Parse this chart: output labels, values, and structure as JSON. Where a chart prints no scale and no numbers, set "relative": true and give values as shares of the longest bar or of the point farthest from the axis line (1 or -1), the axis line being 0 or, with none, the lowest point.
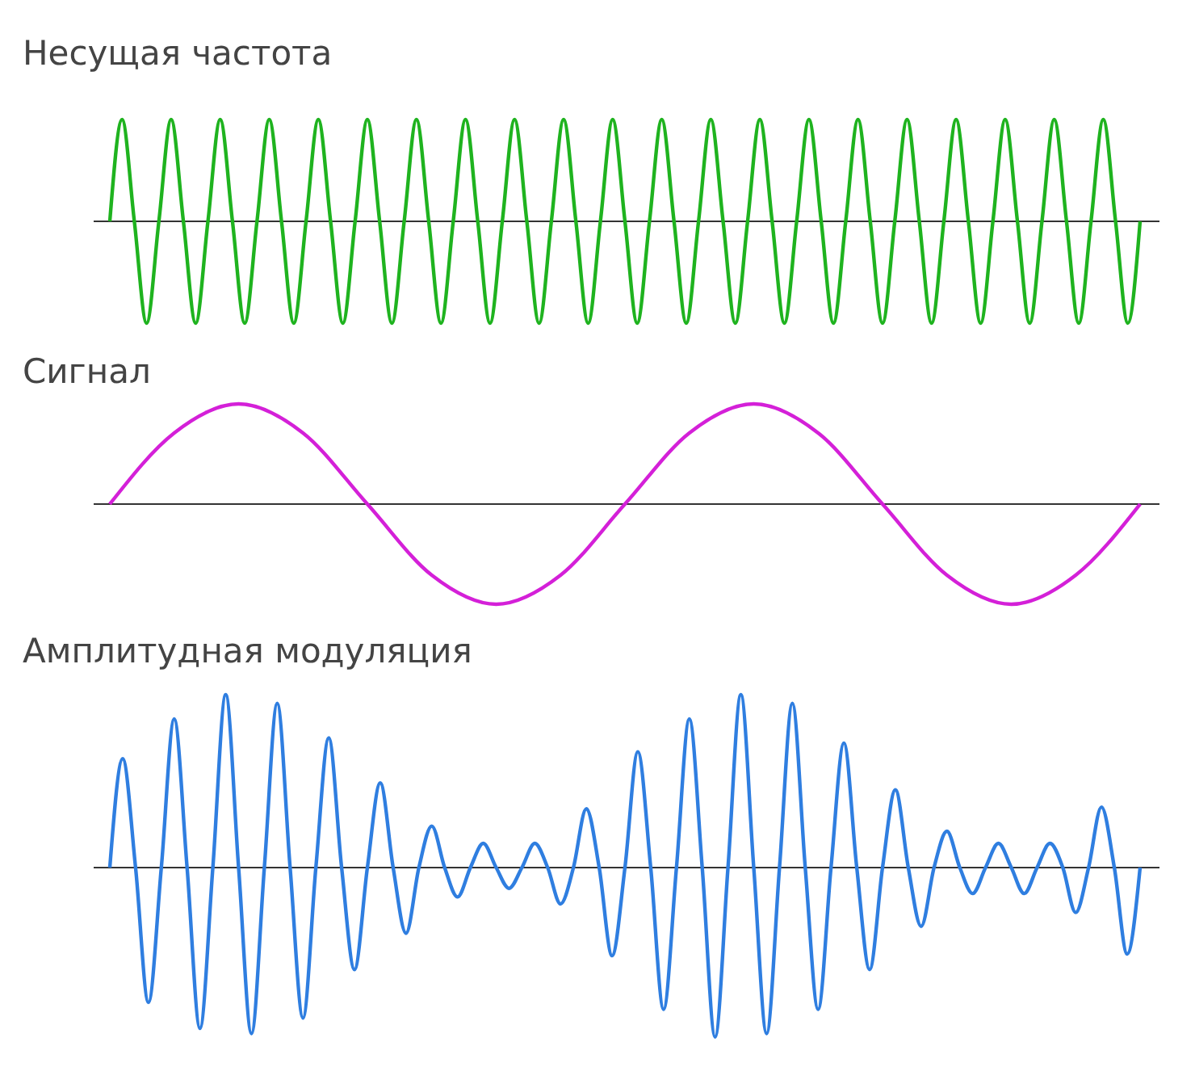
{
  "chart_data": [
    {
      "type": "line",
      "title": "Несущая частота",
      "relative": true,
      "categories": [
        null,
        null,
        null,
        null,
        null,
        null,
        null,
        null,
        null,
        null,
        null,
        null,
        null,
        null,
        null,
        null,
        null,
        null,
        null,
        null,
        null,
        null,
        null,
        null,
        null,
        null,
        null,
        null,
        null,
        null,
        null,
        null,
        null,
        null,
        null,
        null,
        null,
        null,
        null,
        null,
        null,
        null,
        null,
        null,
        null,
        null,
        null,
        null,
        null,
        null,
        null,
        null,
        null,
        null,
        null,
        null,
        null,
        null,
        null,
        null,
        null,
        null,
        null,
        null,
        null,
        null,
        null,
        null,
        null,
        null,
        null,
        null,
        null,
        null,
        null,
        null,
        null,
        null,
        null,
        null,
        null,
        null,
        null,
        null,
        null
      ],
      "series": [
        {
          "color": "#1fb31f",
          "values": [
            0,
            1,
            0,
            -1,
            0,
            1,
            0,
            -1,
            0,
            1,
            0,
            -1,
            0,
            1,
            0,
            -1,
            0,
            1,
            0,
            -1,
            0,
            1,
            0,
            -1,
            0,
            1,
            0,
            -1,
            0,
            1,
            0,
            -1,
            0,
            1,
            0,
            -1,
            0,
            1,
            0,
            -1,
            0,
            1,
            0,
            -1,
            0,
            1,
            0,
            -1,
            0,
            1,
            0,
            -1,
            0,
            1,
            0,
            -1,
            0,
            1,
            0,
            -1,
            0,
            1,
            0,
            -1,
            0,
            1,
            0,
            -1,
            0,
            1,
            0,
            -1,
            0,
            1,
            0,
            -1,
            0,
            1,
            0,
            -1,
            0,
            1,
            0,
            -1,
            0
          ]
        }
      ]
    },
    {
      "type": "line",
      "title": "Сигнал",
      "relative": true,
      "categories": [
        null,
        null,
        null,
        null,
        null,
        null,
        null,
        null,
        null,
        null,
        null,
        null,
        null,
        null,
        null,
        null,
        null
      ],
      "series": [
        {
          "color": "#d420d8",
          "values": [
            0,
            0.71,
            1,
            0.71,
            0,
            -0.71,
            -1,
            -0.71,
            0,
            0.71,
            1,
            0.71,
            0,
            -0.71,
            -1,
            -0.71,
            0
          ]
        }
      ]
    },
    {
      "type": "line",
      "title": "Амплитудная модуляция",
      "relative": true,
      "categories": [
        null,
        null,
        null,
        null,
        null,
        null,
        null,
        null,
        null,
        null,
        null,
        null,
        null,
        null,
        null,
        null,
        null,
        null,
        null,
        null,
        null,
        null,
        null,
        null,
        null,
        null,
        null,
        null,
        null,
        null,
        null,
        null,
        null,
        null,
        null,
        null,
        null,
        null,
        null,
        null,
        null,
        null,
        null,
        null,
        null,
        null,
        null,
        null,
        null,
        null,
        null,
        null,
        null,
        null,
        null,
        null,
        null,
        null,
        null,
        null,
        null,
        null,
        null,
        null,
        null,
        null,
        null,
        null,
        null,
        null,
        null,
        null,
        null,
        null,
        null,
        null,
        null,
        null,
        null,
        null,
        null
      ],
      "series": [
        {
          "color": "#2f7ee0",
          "values": [
            0,
            0.63,
            0,
            -0.78,
            0,
            0.86,
            0,
            -0.93,
            0,
            1,
            0,
            -0.96,
            0,
            0.95,
            0,
            -0.87,
            0,
            0.75,
            0,
            -0.59,
            0,
            0.49,
            0,
            -0.38,
            0,
            0.24,
            0,
            -0.17,
            0,
            0.14,
            0,
            -0.12,
            0,
            0.14,
            0,
            -0.21,
            0,
            0.34,
            0,
            -0.51,
            0,
            0.67,
            0,
            -0.82,
            0,
            0.86,
            0,
            -0.98,
            0,
            1,
            0,
            -0.96,
            0,
            0.95,
            0,
            -0.82,
            0,
            0.72,
            0,
            -0.59,
            0,
            0.45,
            0,
            -0.34,
            0,
            0.21,
            0,
            -0.15,
            0,
            0.14,
            0,
            -0.15,
            0,
            0.14,
            0,
            -0.26,
            0,
            0.35,
            0,
            -0.5,
            0
          ]
        }
      ]
    }
  ]
}
